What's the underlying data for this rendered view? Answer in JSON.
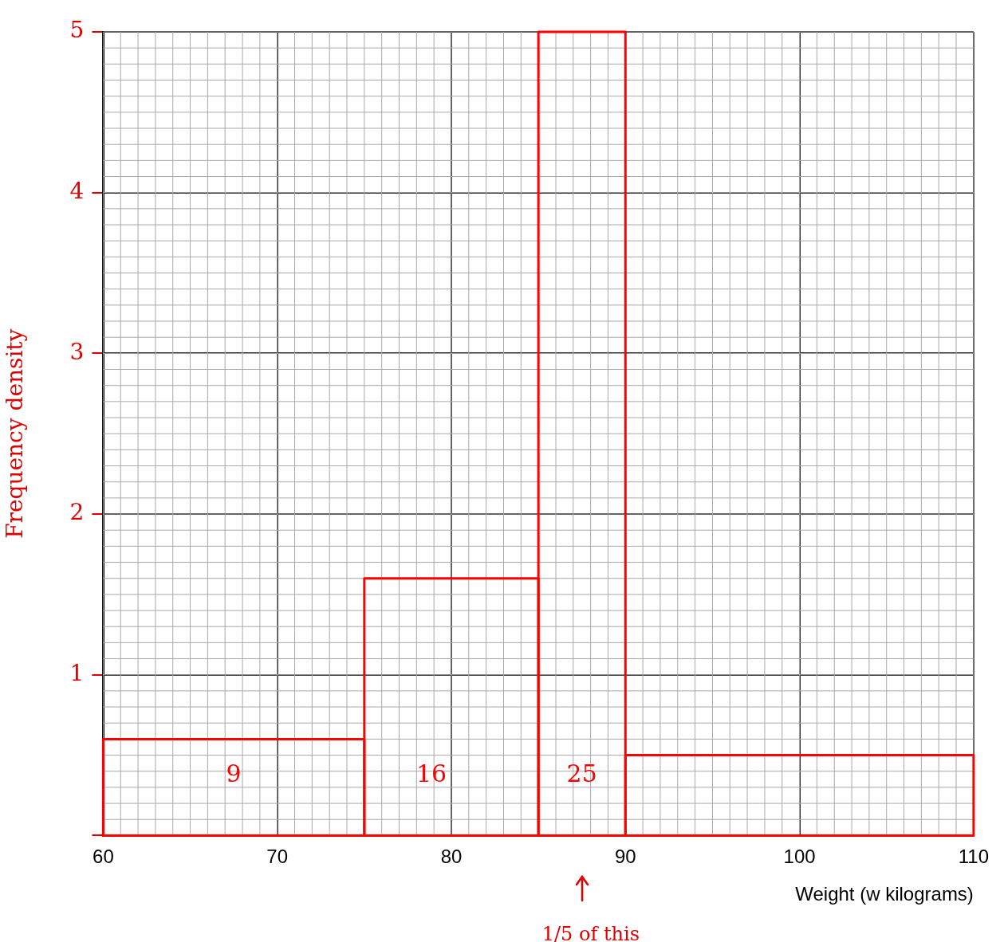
{
  "chart_data": {
    "type": "histogram",
    "xlabel": "Weight (w kilograms)",
    "ylabel": "Frequency density",
    "bins": [
      60,
      75,
      85,
      90,
      110
    ],
    "values": [
      0.6,
      1.6,
      5,
      0.5
    ],
    "color": "#ff0000",
    "xlim": [
      60,
      110
    ],
    "xticks": [
      60,
      70,
      80,
      90,
      100,
      110
    ],
    "ylim": [
      0,
      5
    ],
    "yticks": [
      {
        "value": 0,
        "label": null
      },
      1,
      2,
      3,
      4,
      5
    ],
    "grid": true,
    "legend": false,
    "annotations": [
      "9",
      "16",
      "25",
      "1/5 of this"
    ]
  }
}
